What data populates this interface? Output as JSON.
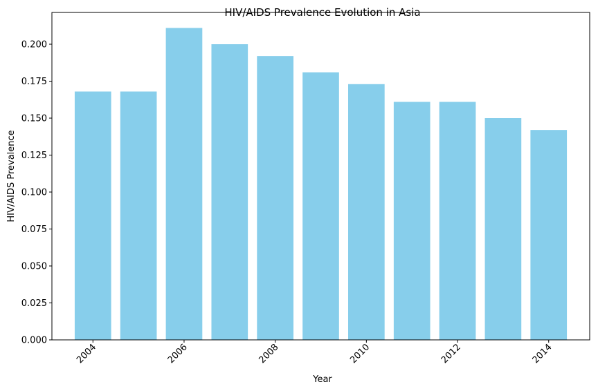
{
  "chart_data": {
    "type": "bar",
    "title": "HIV/AIDS Prevalence Evolution in Asia",
    "xlabel": "Year",
    "ylabel": "HIV/AIDS Prevalence",
    "categories": [
      2004,
      2005,
      2006,
      2007,
      2008,
      2009,
      2010,
      2011,
      2012,
      2013,
      2014
    ],
    "values": [
      0.168,
      0.168,
      0.211,
      0.2,
      0.192,
      0.181,
      0.173,
      0.161,
      0.161,
      0.15,
      0.142
    ],
    "xticks": [
      "2004",
      "2006",
      "2008",
      "2010",
      "2012",
      "2014"
    ],
    "xtick_rotation_deg": 45,
    "yticks": [
      "0.000",
      "0.025",
      "0.050",
      "0.075",
      "0.100",
      "0.125",
      "0.150",
      "0.175",
      "0.200"
    ],
    "ylim": [
      0,
      0.2215
    ],
    "xlim": [
      2003.1,
      2014.9
    ],
    "bar_color": "#87ceeb",
    "grid": false,
    "legend": null
  }
}
